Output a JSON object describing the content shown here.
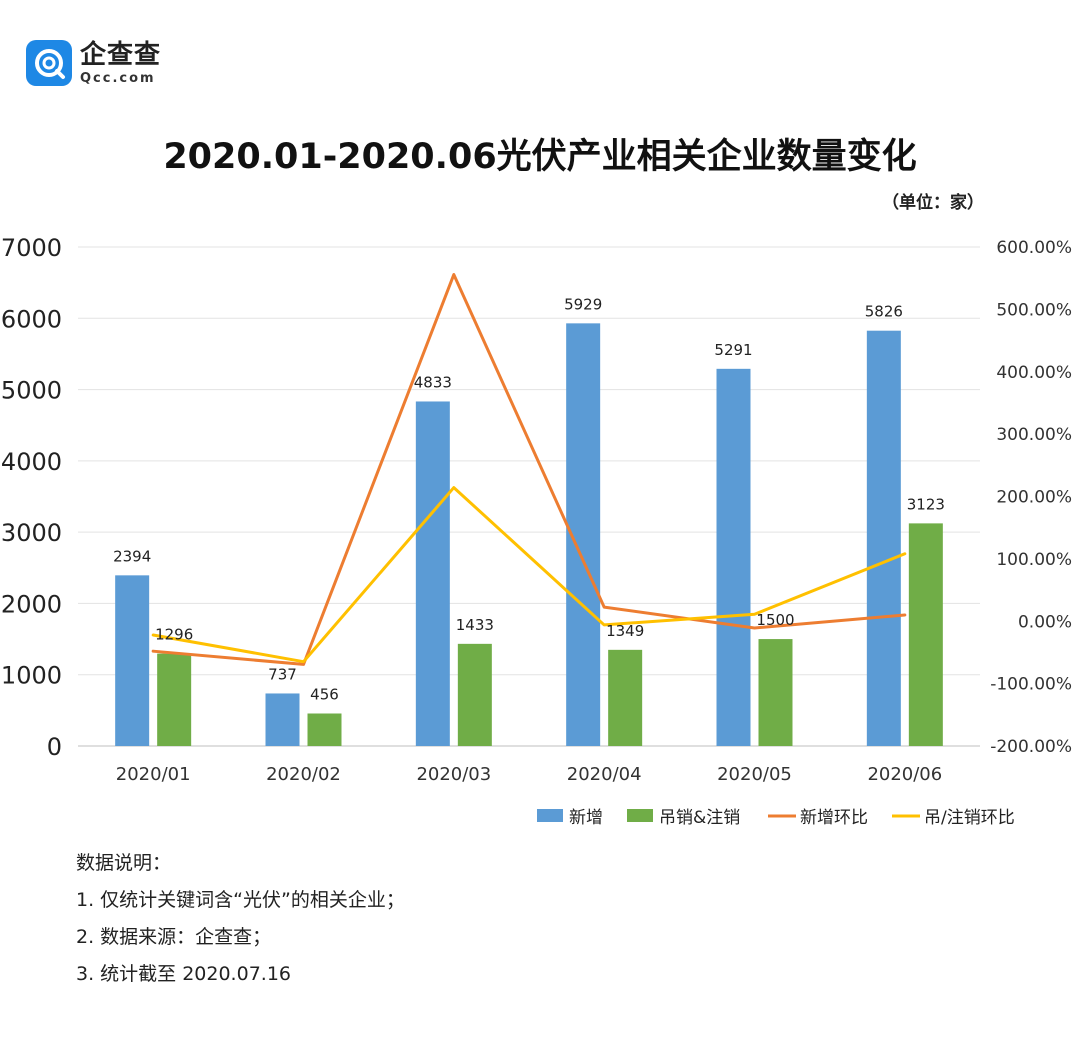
{
  "brand": {
    "name": "企查查",
    "domain": "Qcc.com"
  },
  "unit_label": "（单位：家）",
  "chart_data": {
    "type": "bar",
    "title": "2020.01-2020.06光伏产业相关企业数量变化",
    "categories": [
      "2020/01",
      "2020/02",
      "2020/03",
      "2020/04",
      "2020/05",
      "2020/06"
    ],
    "series": [
      {
        "name": "新增",
        "kind": "bar",
        "axis": "left",
        "color": "#5b9bd5",
        "values": [
          2394,
          737,
          4833,
          5929,
          5291,
          5826
        ]
      },
      {
        "name": "吊销&注销",
        "kind": "bar",
        "axis": "left",
        "color": "#70ad47",
        "values": [
          1296,
          456,
          1433,
          1349,
          1500,
          3123
        ]
      },
      {
        "name": "新增环比",
        "kind": "line",
        "axis": "right",
        "color": "#ed7d31",
        "values": [
          -48,
          -69.2,
          555.8,
          22.7,
          -10.8,
          10.1
        ]
      },
      {
        "name": "吊/注销环比",
        "kind": "line",
        "axis": "right",
        "color": "#ffc000",
        "values": [
          -22,
          -64.8,
          214.3,
          -5.9,
          11.2,
          108.2
        ]
      }
    ],
    "ylim": [
      0,
      7000
    ],
    "y_ticks": [
      "0",
      "1000",
      "2000",
      "3000",
      "4000",
      "5000",
      "6000",
      "7000"
    ],
    "y2lim": [
      -200,
      600
    ],
    "y2_ticks": [
      "-200.00%",
      "-100.00%",
      "0.00%",
      "100.00%",
      "200.00%",
      "300.00%",
      "400.00%",
      "500.00%",
      "600.00%"
    ],
    "grid": true,
    "legend": "bottom-right",
    "data_labels": true
  },
  "notes": {
    "heading": "数据说明：",
    "items": [
      "1. 仅统计关键词含“光伏”的相关企业；",
      "2. 数据来源：企查查；",
      "3. 统计截至 2020.07.16"
    ]
  }
}
